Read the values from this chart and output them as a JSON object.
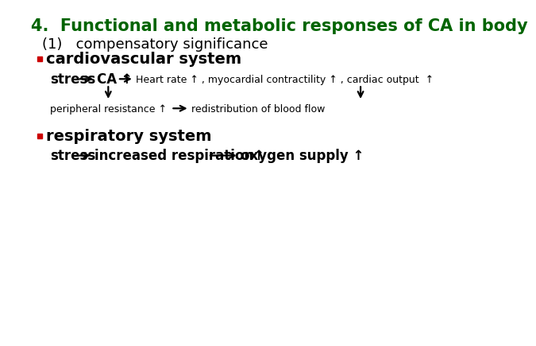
{
  "background_color": "#ffffff",
  "title": "4.  Functional and metabolic responses of CA in body",
  "title_color": "#006400",
  "title_fontsize": 15,
  "subtitle": "(1)   compensatory significance",
  "subtitle_fontsize": 13,
  "section1_label": "cardiovascular system",
  "section1_fontsize": 14,
  "section2_label": "respiratory system",
  "section2_fontsize": 14,
  "bullet_color": "#cc0000",
  "text_color": "#000000",
  "stress_fontsize": 12,
  "body_fontsize": 9,
  "resp_fontsize": 12
}
